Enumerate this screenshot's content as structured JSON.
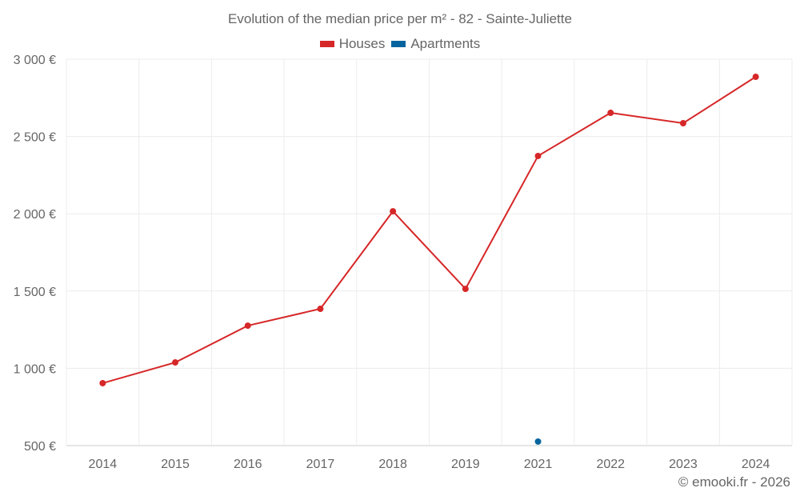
{
  "chart_data": {
    "type": "line",
    "title": "Evolution of the median price per m² - 82 - Sainte-Juliette",
    "categories": [
      "2014",
      "2015",
      "2016",
      "2017",
      "2018",
      "2019",
      "2021",
      "2022",
      "2023",
      "2024"
    ],
    "series": [
      {
        "name": "Houses",
        "color": "#d62728",
        "values": [
          904,
          1038,
          1276,
          1385,
          2016,
          1514,
          2374,
          2653,
          2586,
          2886
        ]
      },
      {
        "name": "Apartments",
        "color": "#06659e",
        "values": [
          null,
          null,
          null,
          null,
          null,
          null,
          526,
          null,
          null,
          null
        ]
      }
    ],
    "y_ticks": [
      500,
      1000,
      1500,
      2000,
      2500,
      3000
    ],
    "y_tick_labels": [
      "500 €",
      "1 000 €",
      "1 500 €",
      "2 000 €",
      "2 500 €",
      "3 000 €"
    ],
    "ylim": [
      500,
      3000
    ],
    "xlabel": "",
    "ylabel": "",
    "grid": true,
    "legend_position": "top-center"
  },
  "credit": "© emooki.fr - 2026"
}
